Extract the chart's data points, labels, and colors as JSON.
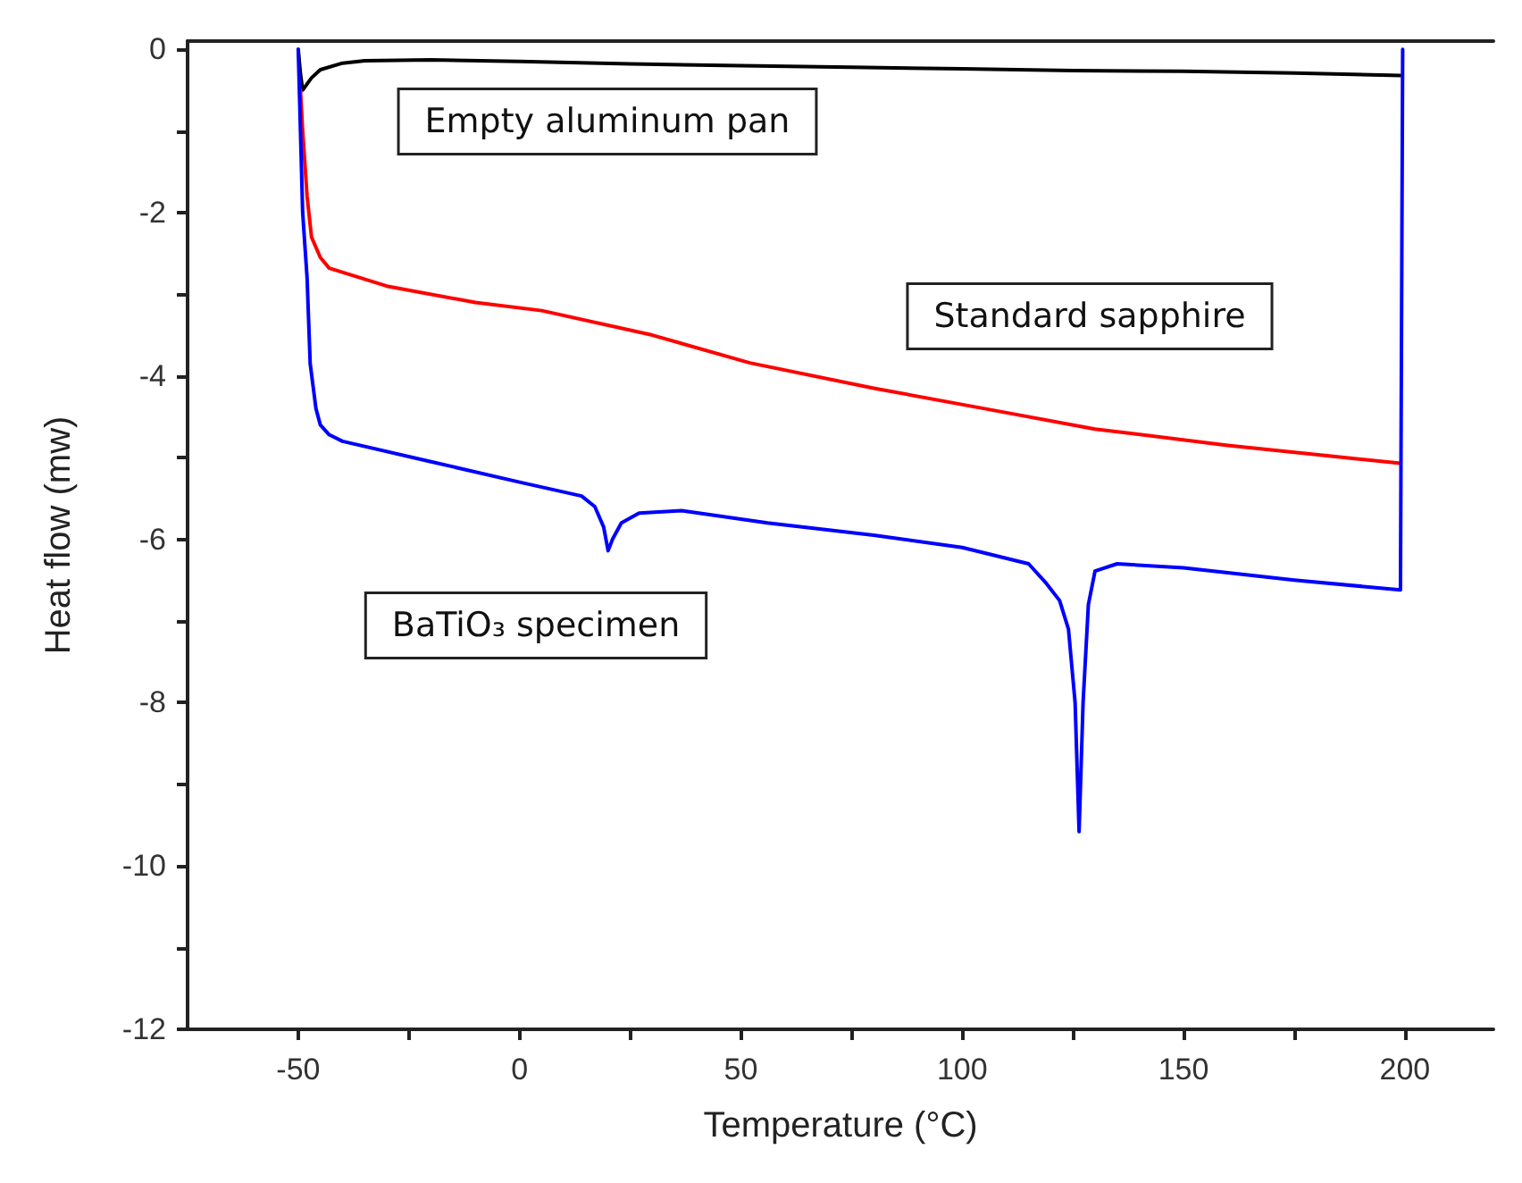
{
  "chart_data": {
    "type": "line",
    "xlabel": "Temperature (°C)",
    "ylabel": "Heat flow (mw)",
    "xlim": [
      -75,
      220
    ],
    "ylim": [
      -12,
      0.1
    ],
    "xticks": [
      -50,
      {
        "value": -25,
        "label": null
      },
      0,
      {
        "value": 25,
        "label": null
      },
      50,
      {
        "value": 75,
        "label": null
      },
      100,
      {
        "value": 125,
        "label": null
      },
      150,
      {
        "value": 175,
        "label": null
      },
      200
    ],
    "yticks": [
      -12,
      {
        "value": -11,
        "label": null
      },
      -10,
      {
        "value": -9,
        "label": null
      },
      -8,
      {
        "value": -7,
        "label": null
      },
      -6,
      {
        "value": -5,
        "label": null
      },
      -4,
      {
        "value": -3,
        "label": null
      },
      -2,
      {
        "value": -1,
        "label": null
      },
      0
    ],
    "grid": false,
    "marker": "none",
    "line_style": "solid",
    "series": [
      {
        "name": "Empty aluminum pan",
        "color": "#000000",
        "x": [
          -50,
          -49.5,
          -49,
          -47,
          -45,
          -40,
          -35,
          -20,
          0,
          25,
          50,
          75,
          100,
          125,
          150,
          175,
          199
        ],
        "values": [
          0,
          -0.3,
          -0.5,
          -0.35,
          -0.25,
          -0.17,
          -0.14,
          -0.13,
          -0.15,
          -0.18,
          -0.2,
          -0.22,
          -0.24,
          -0.26,
          -0.27,
          -0.29,
          -0.32
        ]
      },
      {
        "name": "Standard sapphire",
        "color": "#ff0000",
        "x": [
          -49.5,
          -49,
          -48,
          -47,
          -45,
          -43,
          -30,
          -10,
          5,
          30,
          52,
          80,
          107,
          130,
          160,
          199
        ],
        "values": [
          -0.5,
          -1.0,
          -1.8,
          -2.3,
          -2.55,
          -2.68,
          -2.9,
          -3.1,
          -3.2,
          -3.5,
          -3.84,
          -4.15,
          -4.42,
          -4.65,
          -4.85,
          -5.07
        ]
      },
      {
        "name": "BaTiO₃ specimen",
        "color": "#0000ff",
        "x": [
          -50,
          -49.5,
          -49,
          -48,
          -47.3,
          -46,
          -45,
          -43,
          -40,
          -20,
          0,
          14,
          17,
          19,
          20,
          21,
          23,
          27,
          36.6,
          56,
          80,
          100,
          115,
          119,
          122,
          124,
          125.5,
          126.4,
          127.3,
          128.5,
          130,
          135,
          150,
          175,
          199,
          199.5
        ],
        "values": [
          0,
          -1.0,
          -2.0,
          -2.8,
          -3.85,
          -4.4,
          -4.6,
          -4.72,
          -4.8,
          -5.05,
          -5.3,
          -5.47,
          -5.6,
          -5.85,
          -6.14,
          -6.0,
          -5.8,
          -5.68,
          -5.65,
          -5.8,
          -5.95,
          -6.1,
          -6.3,
          -6.54,
          -6.75,
          -7.1,
          -8.0,
          -9.58,
          -8.0,
          -6.8,
          -6.39,
          -6.3,
          -6.35,
          -6.5,
          -6.62,
          0
        ]
      }
    ]
  }
}
